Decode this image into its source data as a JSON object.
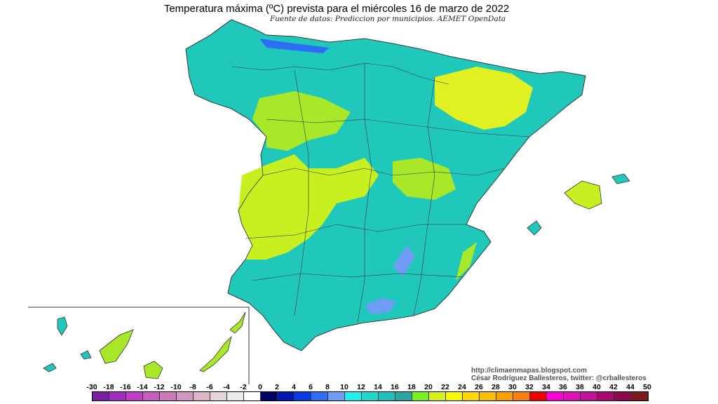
{
  "title": "Temperatura máxima (ºC) prevista para el miércoles 16 de marzo de 2022",
  "subtitle": "Fuente de datos: Prediccion por municipios. AEMET OpenData",
  "credits": {
    "url": "http://climaenmapas.blogspot.com",
    "author": "César Rodríguez Ballesteros, twitter: @crballesteros"
  },
  "map": {
    "variable": "Temperatura máxima (ºC)",
    "dominant_range": "12-18",
    "warmest_range": "18-22",
    "coldest_range": "2-10"
  },
  "legend": {
    "labels": [
      "-30",
      "-18",
      "-16",
      "-14",
      "-12",
      "-10",
      "-8",
      "-6",
      "-4",
      "-2",
      "0",
      "2",
      "4",
      "6",
      "8",
      "10",
      "12",
      "14",
      "16",
      "18",
      "20",
      "22",
      "24",
      "26",
      "28",
      "30",
      "32",
      "34",
      "36",
      "38",
      "40",
      "42",
      "44",
      "50"
    ],
    "colors": [
      "#7a1fa2",
      "#a32cc0",
      "#c23ccc",
      "#c75bc0",
      "#cc7ab8",
      "#d498c0",
      "#dcb6c8",
      "#e6d6da",
      "#ececec",
      "#ffffff",
      "#000066",
      "#0018b0",
      "#0a3ae6",
      "#2e6ef5",
      "#6f9cf5",
      "#1ef0ec",
      "#1fd6cc",
      "#20c0bc",
      "#28a8a0",
      "#78f020",
      "#d8f020",
      "#f8f800",
      "#fad800",
      "#f8c000",
      "#f8a000",
      "#f88010",
      "#f00000",
      "#f800d8",
      "#e010b8",
      "#c0109c",
      "#a80870",
      "#8c0848",
      "#801820"
    ]
  }
}
